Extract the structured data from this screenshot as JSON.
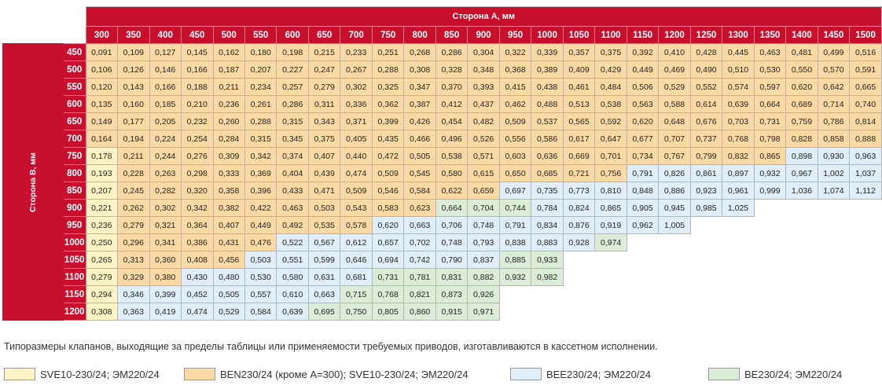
{
  "table": {
    "header_a": "Сторона А, мм",
    "header_b": "Сторона В, мм",
    "columns": [
      "300",
      "350",
      "400",
      "450",
      "500",
      "550",
      "600",
      "650",
      "700",
      "750",
      "800",
      "850",
      "900",
      "950",
      "1000",
      "1050",
      "1100",
      "1150",
      "1200",
      "1250",
      "1300",
      "1350",
      "1400",
      "1450",
      "1500"
    ],
    "rows": [
      {
        "label": "450",
        "values": [
          "0,091",
          "0,109",
          "0,127",
          "0,145",
          "0,162",
          "0,180",
          "0,198",
          "0,215",
          "0,233",
          "0,251",
          "0,268",
          "0,286",
          "0,304",
          "0,322",
          "0,339",
          "0,357",
          "0,375",
          "0,392",
          "0,410",
          "0,428",
          "0,445",
          "0,463",
          "0,481",
          "0,499",
          "0,516"
        ],
        "cls": "yooooooooooooooooooooooooo"
      },
      {
        "label": "500",
        "values": [
          "0,106",
          "0,126",
          "0,146",
          "0,166",
          "0,187",
          "0,207",
          "0,227",
          "0,247",
          "0,267",
          "0,288",
          "0,308",
          "0,328",
          "0,348",
          "0,368",
          "0,389",
          "0,409",
          "0,429",
          "0,449",
          "0,469",
          "0,490",
          "0,510",
          "0,530",
          "0,550",
          "0,570",
          "0,591"
        ],
        "cls": "yooooooooooooooooooooooooo"
      },
      {
        "label": "550",
        "values": [
          "0,120",
          "0,143",
          "0,166",
          "0,188",
          "0,211",
          "0,234",
          "0,257",
          "0,279",
          "0,302",
          "0,325",
          "0,347",
          "0,370",
          "0,393",
          "0,415",
          "0,438",
          "0,461",
          "0,484",
          "0,506",
          "0,529",
          "0,552",
          "0,574",
          "0,597",
          "0,620",
          "0,642",
          "0,665"
        ],
        "cls": "yooooooooooooooooooooooooo"
      },
      {
        "label": "600",
        "values": [
          "0,135",
          "0,160",
          "0,185",
          "0,210",
          "0,236",
          "0,261",
          "0,286",
          "0,311",
          "0,336",
          "0,362",
          "0,387",
          "0,412",
          "0,437",
          "0,462",
          "0,488",
          "0,513",
          "0,538",
          "0,563",
          "0,588",
          "0,614",
          "0,639",
          "0,664",
          "0,689",
          "0,714",
          "0,740"
        ],
        "cls": "yooooooooooooooooooooooooo"
      },
      {
        "label": "650",
        "values": [
          "0,149",
          "0,177",
          "0,205",
          "0,232",
          "0,260",
          "0,288",
          "0,315",
          "0,343",
          "0,371",
          "0,399",
          "0,426",
          "0,454",
          "0,482",
          "0,509",
          "0,537",
          "0,565",
          "0,592",
          "0,620",
          "0,648",
          "0,676",
          "0,703",
          "0,731",
          "0,759",
          "0,786",
          "0,814"
        ],
        "cls": "yooooooooooooooooooooooooo"
      },
      {
        "label": "700",
        "values": [
          "0,164",
          "0,194",
          "0,224",
          "0,254",
          "0,284",
          "0,315",
          "0,345",
          "0,375",
          "0,405",
          "0,435",
          "0,466",
          "0,496",
          "0,526",
          "0,556",
          "0,586",
          "0,617",
          "0,647",
          "0,677",
          "0,707",
          "0,737",
          "0,768",
          "0,798",
          "0,828",
          "0,858",
          "0,888"
        ],
        "cls": "yooooooooooooooooooooooooo"
      },
      {
        "label": "750",
        "values": [
          "0,178",
          "0,211",
          "0,244",
          "0,276",
          "0,309",
          "0,342",
          "0,374",
          "0,407",
          "0,440",
          "0,472",
          "0,505",
          "0,538",
          "0,571",
          "0,603",
          "0,636",
          "0,669",
          "0,701",
          "0,734",
          "0,767",
          "0,799",
          "0,832",
          "0,865",
          "0,898",
          "0,930",
          "0,963"
        ],
        "cls": "yyooooooooooooooooooooobbb"
      },
      {
        "label": "800",
        "values": [
          "0,193",
          "0,228",
          "0,263",
          "0,298",
          "0,333",
          "0,369",
          "0,404",
          "0,439",
          "0,474",
          "0,509",
          "0,545",
          "0,580",
          "0,615",
          "0,650",
          "0,685",
          "0,721",
          "0,756",
          "0,791",
          "0,826",
          "0,861",
          "0,897",
          "0,932",
          "0,967",
          "1,002",
          "1,037"
        ],
        "cls": "yyoooooooooooooooobbbbbbbb"
      },
      {
        "label": "850",
        "values": [
          "0,207",
          "0,245",
          "0,282",
          "0,320",
          "0,358",
          "0,396",
          "0,433",
          "0,471",
          "0,509",
          "0,546",
          "0,584",
          "0,622",
          "0,659",
          "0,697",
          "0,735",
          "0,773",
          "0,810",
          "0,848",
          "0,886",
          "0,923",
          "0,961",
          "0,999",
          "1,036",
          "1,074",
          "1,112"
        ],
        "cls": "yyoooooooooooobbbbbbbbbbbb"
      },
      {
        "label": "900",
        "values": [
          "0,221",
          "0,262",
          "0,302",
          "0,342",
          "0,382",
          "0,422",
          "0,463",
          "0,503",
          "0,543",
          "0,583",
          "0,623",
          "0,664",
          "0,704",
          "0,744",
          "0,784",
          "0,824",
          "0,865",
          "0,905",
          "0,945",
          "0,985",
          "1,025",
          "",
          "",
          "",
          ""
        ],
        "cls": "yyoooooooooogggbbbbbbbbbb"
      },
      {
        "label": "950",
        "values": [
          "0,236",
          "0,279",
          "0,321",
          "0,364",
          "0,407",
          "0,449",
          "0,492",
          "0,535",
          "0,578",
          "0,620",
          "0,663",
          "0,706",
          "0,748",
          "0,791",
          "0,834",
          "0,876",
          "0,919",
          "0,962",
          "1,005",
          "",
          "",
          "",
          "",
          "",
          ""
        ],
        "cls": "yyoooooooobbbbbbbbbbbbbb"
      },
      {
        "label": "1000",
        "values": [
          "0,250",
          "0,296",
          "0,341",
          "0,386",
          "0,431",
          "0,476",
          "0,522",
          "0,567",
          "0,612",
          "0,657",
          "0,702",
          "0,748",
          "0,793",
          "0,838",
          "0,883",
          "0,928",
          "0,974",
          "",
          "",
          "",
          "",
          "",
          "",
          "",
          ""
        ],
        "cls": "yyooooobbbbbbbbbbgg"
      },
      {
        "label": "1050",
        "values": [
          "0,265",
          "0,313",
          "0,360",
          "0,408",
          "0,456",
          "0,503",
          "0,551",
          "0,599",
          "0,646",
          "0,694",
          "0,742",
          "0,790",
          "0,837",
          "0,885",
          "0,933",
          "",
          "",
          "",
          "",
          "",
          "",
          "",
          "",
          "",
          ""
        ],
        "cls": "yyoooobbbbbbbbgg"
      },
      {
        "label": "1100",
        "values": [
          "0,279",
          "0,329",
          "0,380",
          "0,430",
          "0,480",
          "0,530",
          "0,580",
          "0,631",
          "0,681",
          "0,731",
          "0,781",
          "0,831",
          "0,882",
          "0,932",
          "0,982",
          "",
          "",
          "",
          "",
          "",
          "",
          "",
          "",
          "",
          ""
        ],
        "cls": "yyoobbbbbbgggggg"
      },
      {
        "label": "1150",
        "values": [
          "0,294",
          "0,346",
          "0,399",
          "0,452",
          "0,505",
          "0,557",
          "0,610",
          "0,663",
          "0,715",
          "0,768",
          "0,821",
          "0,873",
          "0,926",
          "",
          "",
          "",
          "",
          "",
          "",
          "",
          "",
          "",
          "",
          "",
          ""
        ],
        "cls": "yybbbbbbbgggg"
      },
      {
        "label": "1200",
        "values": [
          "0,308",
          "0,363",
          "0,419",
          "0,474",
          "0,529",
          "0,584",
          "0,639",
          "0,695",
          "0,750",
          "0,805",
          "0,860",
          "0,915",
          "0,971",
          "",
          "",
          "",
          "",
          "",
          "",
          "",
          "",
          "",
          "",
          "",
          ""
        ],
        "cls": "yybbbbbbggggg"
      }
    ]
  },
  "note": "Типоразмеры клапанов, выходящие за пределы таблицы или применяемости требуемых приводов, изготавливаются в кассетном исполнении.",
  "legend": [
    {
      "label": "SVE10-230/24; ЭМ220/24",
      "color": "#fdf4c5"
    },
    {
      "label": "BEN230/24 (кроме А=300); SVE10-230/24; ЭМ220/24",
      "color": "#fbd9a5"
    },
    {
      "label": "BEE230/24; ЭМ220/24",
      "color": "#dfeef8"
    },
    {
      "label": "BE230/24; ЭМ220/24",
      "color": "#dbecd7"
    }
  ]
}
